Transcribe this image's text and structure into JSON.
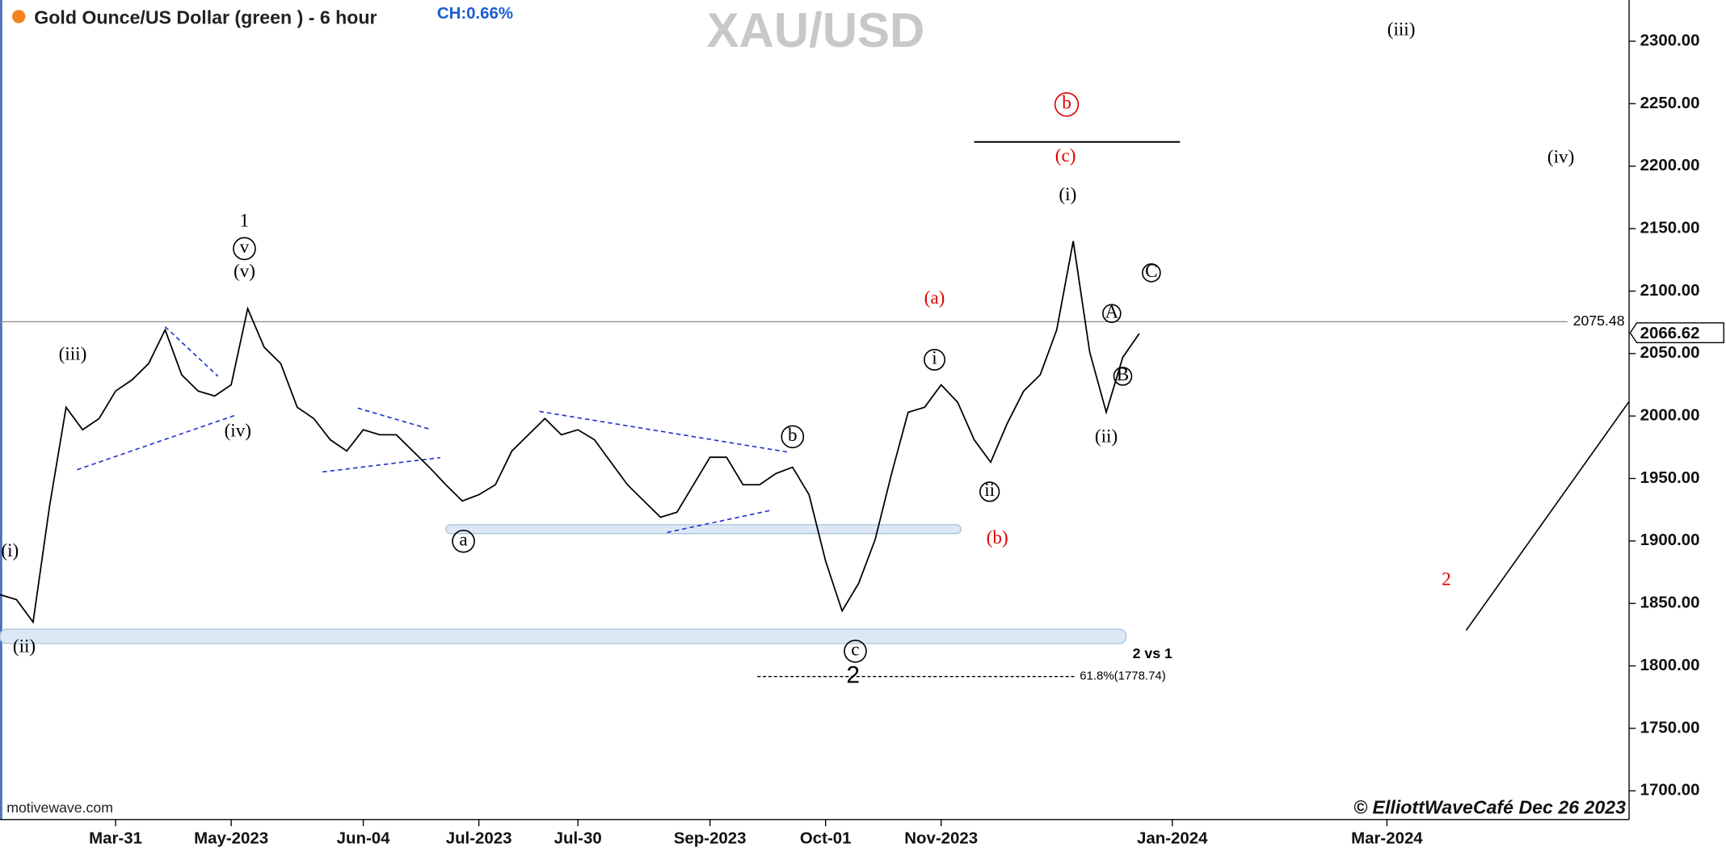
{
  "chart_data": {
    "type": "line",
    "title": "Gold Ounce/US Dollar (green ) - 6 hour",
    "subtitle": "CH:0.66%",
    "watermark": "XAU/USD",
    "source": "motivewave.com",
    "credit": "© ElliottWaveCafé Dec 26 2023",
    "categories": [
      null,
      null,
      null,
      null,
      null,
      null,
      null,
      "Mar-31",
      null,
      null,
      null,
      null,
      null,
      null,
      "May-2023",
      null,
      null,
      null,
      null,
      null,
      null,
      null,
      "Jun-04",
      null,
      null,
      null,
      null,
      null,
      null,
      "Jul-2023",
      null,
      null,
      null,
      null,
      null,
      "Jul-30",
      null,
      null,
      null,
      null,
      null,
      null,
      null,
      "Sep-2023",
      null,
      null,
      null,
      null,
      null,
      null,
      "Oct-01",
      null,
      null,
      null,
      null,
      null,
      null,
      "Nov-2023",
      null,
      null,
      null,
      null,
      null,
      null,
      null,
      null,
      null,
      null,
      null,
      null,
      null,
      "Jan-2024",
      null,
      null,
      null,
      null,
      null,
      null,
      null,
      null,
      null,
      null,
      null,
      null,
      "Mar-2024",
      null,
      null,
      null,
      null,
      null,
      null,
      null,
      null,
      null,
      null,
      null,
      null,
      null,
      null
    ],
    "series": [
      {
        "name": "Gold Ounce/US Dollar",
        "color": "#000000",
        "values": [
          1857,
          1853,
          1835,
          1928,
          2007,
          1989,
          1998,
          2020,
          2029,
          2042,
          2069,
          2033,
          2020,
          2016,
          2025,
          2086,
          2055,
          2042,
          2007,
          1998,
          1981,
          1972,
          1989,
          1985,
          1985,
          1972,
          1959,
          1945,
          1932,
          1937,
          1945,
          1972,
          1985,
          1998,
          1985,
          1989,
          1981,
          1963,
          1945,
          1932,
          1919,
          1923,
          1945,
          1967,
          1967,
          1945,
          1945,
          1954,
          1959,
          1937,
          1884,
          1844,
          1866,
          1901,
          1954,
          2003,
          2007,
          2025,
          2011,
          1981,
          1963,
          1994,
          2020,
          2033,
          2069,
          2140,
          2051,
          2003,
          2047,
          2066,
          null,
          null,
          null,
          null,
          null,
          null,
          null,
          null,
          null,
          null,
          null,
          null,
          null,
          null,
          null,
          null,
          null,
          null,
          null,
          null,
          null,
          null,
          null,
          null,
          null,
          null,
          null,
          null,
          null
        ]
      }
    ],
    "ylim": [
      1677,
      2333
    ],
    "yticks": [
      {
        "value": 1700,
        "label": "1700.00"
      },
      {
        "value": 1750,
        "label": "1750.00"
      },
      {
        "value": 1800,
        "label": "1800.00"
      },
      {
        "value": 1850,
        "label": "1850.00"
      },
      {
        "value": 1900,
        "label": "1900.00"
      },
      {
        "value": 1950,
        "label": "1950.00"
      },
      {
        "value": 2000,
        "label": "2000.00"
      },
      {
        "value": 2050,
        "label": "2050.00"
      },
      {
        "value": 2100,
        "label": "2100.00"
      },
      {
        "value": 2150,
        "label": "2150.00"
      },
      {
        "value": 2200,
        "label": "2200.00"
      },
      {
        "value": 2250,
        "label": "2250.00"
      },
      {
        "value": 2300,
        "label": "2300.00"
      }
    ],
    "reference_line": {
      "value": 2075.48,
      "label": "2075.48"
    },
    "last_price": {
      "value": 2066.62,
      "label": "2066.62"
    },
    "annotations": [
      {
        "text": "(iii)",
        "color": "#000000"
      },
      {
        "text": "b",
        "color": "#e00000"
      },
      {
        "text": "(c)",
        "color": "#e00000"
      },
      {
        "text": "(iv)",
        "color": "#000000"
      },
      {
        "text": "(i)",
        "color": "#000000"
      },
      {
        "text": "C",
        "color": "#000000"
      },
      {
        "text": "(a)",
        "color": "#e00000"
      },
      {
        "text": "A",
        "color": "#000000"
      },
      {
        "text": "B",
        "color": "#000000"
      },
      {
        "text": "i",
        "color": "#000000"
      },
      {
        "text": "(ii)",
        "color": "#000000"
      },
      {
        "text": "b",
        "color": "#000000"
      },
      {
        "text": "ii",
        "color": "#000000"
      },
      {
        "text": "(b)",
        "color": "#e00000"
      },
      {
        "text": "2",
        "color": "#e00000"
      },
      {
        "text": "1",
        "color": "#000000"
      },
      {
        "text": "v",
        "color": "#000000"
      },
      {
        "text": "(v)",
        "color": "#000000"
      },
      {
        "text": "(iii)",
        "color": "#000000"
      },
      {
        "text": "(iv)",
        "color": "#000000"
      },
      {
        "text": "(i)",
        "color": "#000000"
      },
      {
        "text": "(ii)",
        "color": "#000000"
      },
      {
        "text": "a",
        "color": "#000000"
      },
      {
        "text": "c",
        "color": "#000000"
      },
      {
        "text": "2",
        "color": "#000000"
      },
      {
        "text": "2 vs 1",
        "color": "#000000"
      },
      {
        "text": "61.8%(1778.74)",
        "color": "#000000"
      }
    ]
  }
}
